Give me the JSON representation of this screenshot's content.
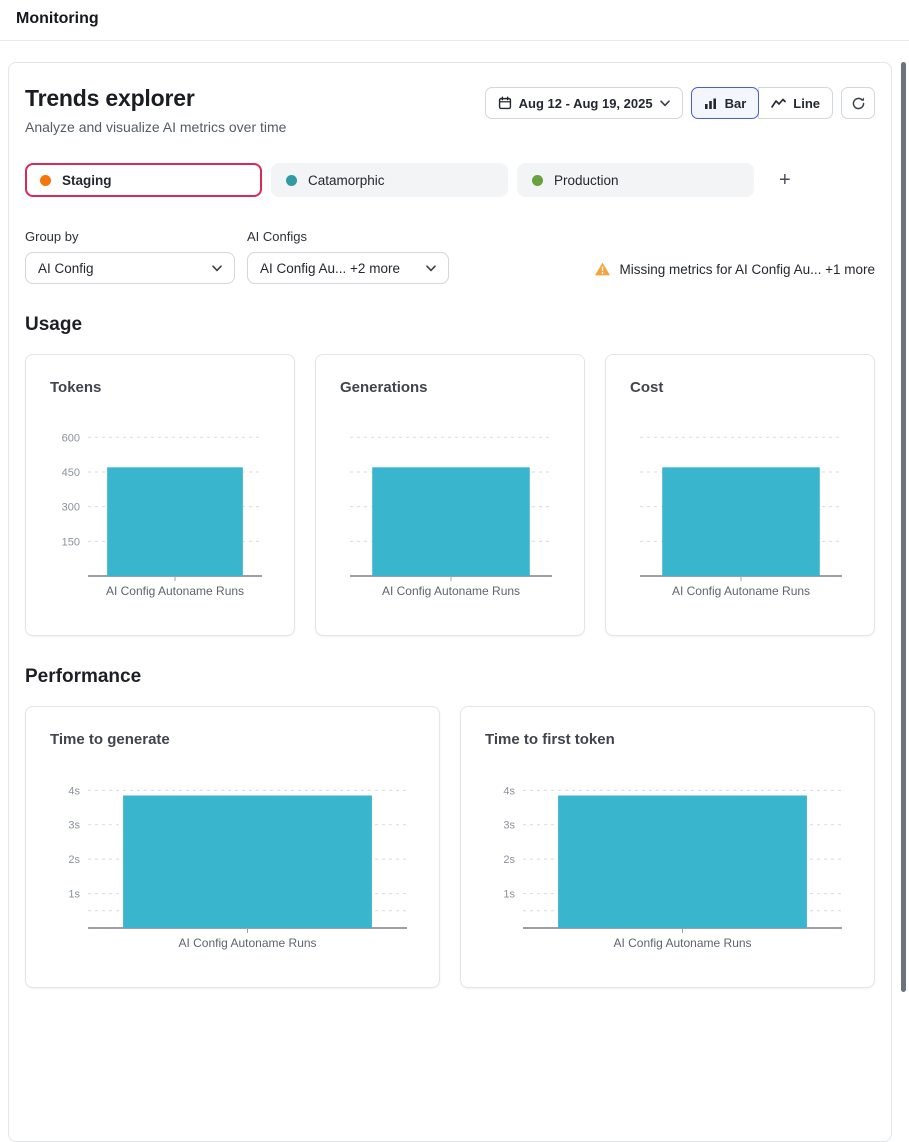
{
  "page": {
    "title": "Monitoring"
  },
  "colors": {
    "bar_fill": "#39b5ce",
    "selected_env_border": "#dc2857",
    "selected_toggle_blue": "#4a5ed2",
    "warning_orange": "#f6a33b",
    "env_dot_staging": "#f5760b",
    "env_dot_catamorphic": "#2f9ca3",
    "env_dot_production": "#66a23f"
  },
  "trends": {
    "title": "Trends explorer",
    "subtitle": "Analyze and visualize AI metrics over time",
    "date_range": "Aug 12 - Aug 19, 2025",
    "chart_toggle": {
      "options": [
        {
          "label": "Bar",
          "selected": true
        },
        {
          "label": "Line",
          "selected": false
        }
      ]
    },
    "environments": [
      {
        "label": "Staging",
        "color": "#f5760b",
        "selected": true
      },
      {
        "label": "Catamorphic",
        "color": "#2f9ca3",
        "selected": false
      },
      {
        "label": "Production",
        "color": "#66a23f",
        "selected": false
      }
    ],
    "add_environment_label": "+",
    "group_by": {
      "label": "Group by",
      "value": "AI Config"
    },
    "ai_configs": {
      "label": "AI Configs",
      "value": "AI Config Au... +2 more"
    },
    "warning_text": "Missing metrics for AI Config Au... +1 more"
  },
  "sections": {
    "usage": {
      "title": "Usage"
    },
    "performance": {
      "title": "Performance"
    }
  },
  "chart_data": [
    {
      "type": "bar",
      "section": "Usage",
      "title": "Tokens",
      "categories": [
        "AI Config Autoname Runs"
      ],
      "values": [
        470
      ],
      "yticks": [
        {
          "v": 150,
          "label": "150"
        },
        {
          "v": 300,
          "label": "300"
        },
        {
          "v": 450,
          "label": "450"
        },
        {
          "v": 600,
          "label": "600"
        }
      ],
      "ylim": [
        0,
        640
      ],
      "bar_color": "#39b5ce",
      "grid": "dashed-horizontal",
      "legend": "none"
    },
    {
      "type": "bar",
      "section": "Usage",
      "title": "Generations",
      "categories": [
        "AI Config Autoname Runs"
      ],
      "values": [
        470
      ],
      "yticks": [
        {
          "v": 150,
          "label": ""
        },
        {
          "v": 300,
          "label": ""
        },
        {
          "v": 450,
          "label": ""
        },
        {
          "v": 600,
          "label": ""
        }
      ],
      "ylim": [
        0,
        640
      ],
      "bar_color": "#39b5ce",
      "grid": "dashed-horizontal",
      "legend": "none"
    },
    {
      "type": "bar",
      "section": "Usage",
      "title": "Cost",
      "categories": [
        "AI Config Autoname Runs"
      ],
      "values": [
        470
      ],
      "yticks": [
        {
          "v": 150,
          "label": ""
        },
        {
          "v": 300,
          "label": ""
        },
        {
          "v": 450,
          "label": ""
        },
        {
          "v": 600,
          "label": ""
        }
      ],
      "ylim": [
        0,
        640
      ],
      "bar_color": "#39b5ce",
      "grid": "dashed-horizontal",
      "legend": "none"
    },
    {
      "type": "bar",
      "section": "Performance",
      "title": "Time to generate",
      "categories": [
        "AI Config Autoname Runs"
      ],
      "values": [
        3.85
      ],
      "yticks": [
        {
          "v": 0.5,
          "label": ""
        },
        {
          "v": 1,
          "label": "1s"
        },
        {
          "v": 2,
          "label": "2s"
        },
        {
          "v": 3,
          "label": "3s"
        },
        {
          "v": 4,
          "label": "4s"
        }
      ],
      "ylim": [
        0,
        4.3
      ],
      "bar_color": "#39b5ce",
      "grid": "dashed-horizontal",
      "legend": "none"
    },
    {
      "type": "bar",
      "section": "Performance",
      "title": "Time to first token",
      "categories": [
        "AI Config Autoname Runs"
      ],
      "values": [
        3.85
      ],
      "yticks": [
        {
          "v": 0.5,
          "label": ""
        },
        {
          "v": 1,
          "label": "1s"
        },
        {
          "v": 2,
          "label": "2s"
        },
        {
          "v": 3,
          "label": "3s"
        },
        {
          "v": 4,
          "label": "4s"
        }
      ],
      "ylim": [
        0,
        4.3
      ],
      "bar_color": "#39b5ce",
      "grid": "dashed-horizontal",
      "legend": "none"
    }
  ]
}
